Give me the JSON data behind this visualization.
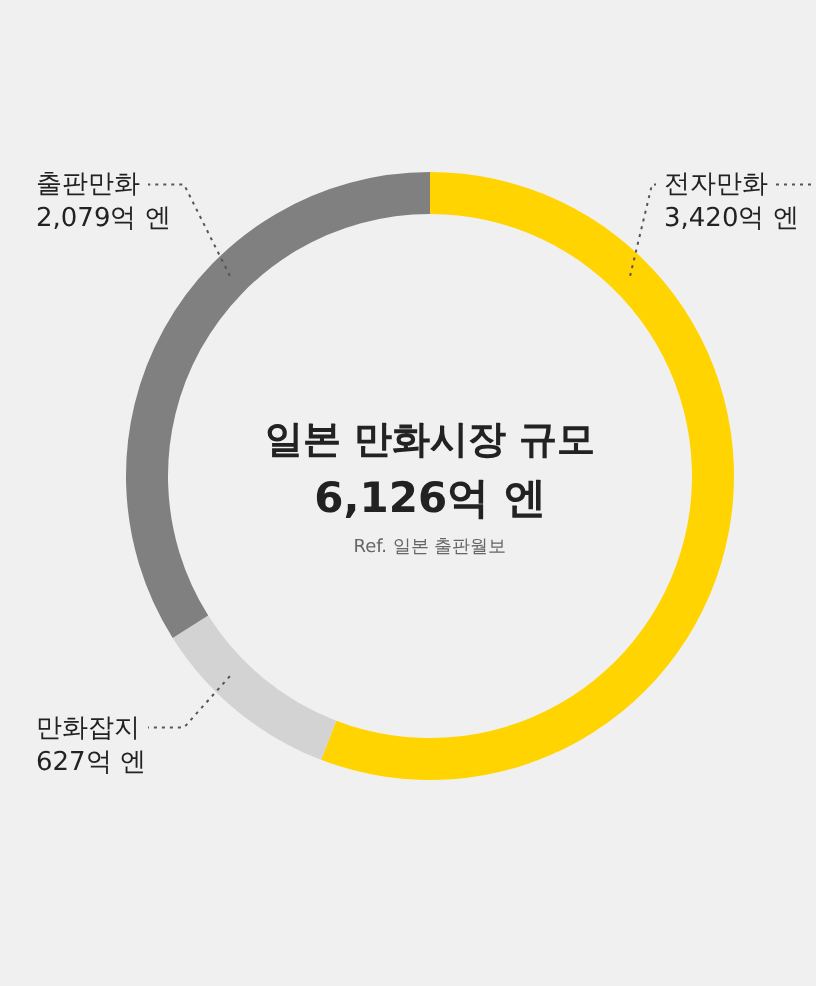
{
  "chart_data": {
    "type": "donut",
    "title": "일본 만화시장 규모",
    "subtitle": "6,126억 엔",
    "annotations": [
      "Ref. 일본 출판월보"
    ],
    "categories": [
      "전자만화",
      "만화잡지",
      "출판만화"
    ],
    "values": [
      3420,
      627,
      2079
    ],
    "value_labels": [
      "3,420억 엔",
      "627억 엔",
      "2,079억 엔"
    ],
    "colors": [
      "#ffd400",
      "#d3d3d3",
      "#808080"
    ]
  }
}
